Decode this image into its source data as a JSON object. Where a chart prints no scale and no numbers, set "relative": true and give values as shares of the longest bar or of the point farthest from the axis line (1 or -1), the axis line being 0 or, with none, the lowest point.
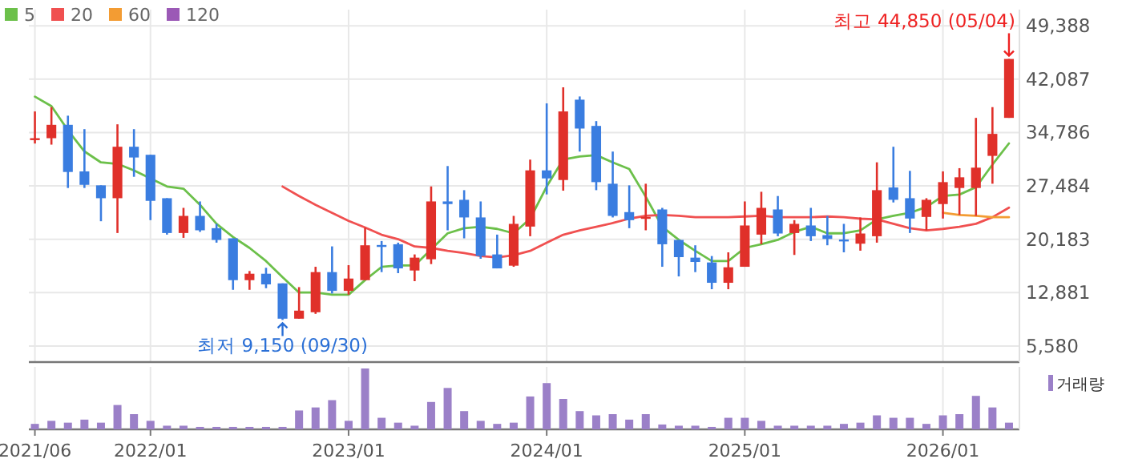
{
  "chart_data": [
    {
      "type": "candlestick",
      "x": [
        "2021-06",
        "2021-07",
        "2021-08",
        "2021-09",
        "2021-10",
        "2021-11",
        "2021-12",
        "2022-01",
        "2022-02",
        "2022-03",
        "2022-04",
        "2022-05",
        "2022-06",
        "2022-07",
        "2022-08",
        "2022-09",
        "2022-10",
        "2022-11",
        "2022-12",
        "2023-01",
        "2023-02",
        "2023-03",
        "2023-04",
        "2023-05",
        "2023-06",
        "2023-07",
        "2023-08",
        "2023-09",
        "2023-10",
        "2023-11",
        "2023-12",
        "2024-01",
        "2024-02",
        "2024-03",
        "2024-04",
        "2024-05",
        "2024-06",
        "2024-07",
        "2024-08",
        "2024-09",
        "2024-10",
        "2024-11",
        "2024-12",
        "2025-01",
        "2025-02",
        "2025-03",
        "2025-04",
        "2025-05",
        "2025-06",
        "2025-07",
        "2025-08",
        "2025-09",
        "2025-10",
        "2025-11",
        "2025-12",
        "2026-01",
        "2026-02",
        "2026-03",
        "2026-04",
        "2026-05"
      ],
      "ohlc": [
        [
          33900,
          37670,
          33280,
          34010
        ],
        [
          34010,
          38260,
          33130,
          35840
        ],
        [
          35840,
          37090,
          27200,
          29390
        ],
        [
          29470,
          35250,
          27200,
          27630
        ],
        [
          27560,
          27560,
          22650,
          25800
        ],
        [
          25800,
          35910,
          21040,
          32840
        ],
        [
          32840,
          35250,
          28730,
          31370
        ],
        [
          31740,
          31740,
          22800,
          25440
        ],
        [
          25800,
          25800,
          20820,
          21040
        ],
        [
          21040,
          24480,
          20380,
          23380
        ],
        [
          23380,
          25360,
          21190,
          21410
        ],
        [
          21700,
          22290,
          19720,
          20090
        ],
        [
          20310,
          20310,
          13270,
          14590
        ],
        [
          14590,
          15840,
          13270,
          15470
        ],
        [
          15470,
          16280,
          13490,
          14010
        ],
        [
          14150,
          14150,
          9150,
          9320
        ],
        [
          9320,
          13640,
          9300,
          10420
        ],
        [
          10200,
          16420,
          9980,
          15690
        ],
        [
          15690,
          19210,
          12760,
          13130
        ],
        [
          13130,
          16640,
          12610,
          14810
        ],
        [
          14590,
          21770,
          14590,
          19360
        ],
        [
          19400,
          19940,
          15690,
          19360
        ],
        [
          19500,
          19720,
          15550,
          16200
        ],
        [
          15910,
          18110,
          14450,
          17670
        ],
        [
          17450,
          27410,
          16790,
          25360
        ],
        [
          25360,
          30200,
          21410,
          25000
        ],
        [
          25580,
          26900,
          20310,
          23170
        ],
        [
          23170,
          25360,
          17520,
          17890
        ],
        [
          18110,
          20820,
          16200,
          16200
        ],
        [
          16570,
          23380,
          16420,
          22290
        ],
        [
          21920,
          31080,
          20600,
          29610
        ],
        [
          29610,
          38770,
          26320,
          28510
        ],
        [
          28290,
          40970,
          26830,
          37670
        ],
        [
          39280,
          39720,
          32180,
          35330
        ],
        [
          35690,
          36350,
          26900,
          28000
        ],
        [
          27780,
          32180,
          23170,
          23380
        ],
        [
          23900,
          27560,
          21700,
          22800
        ],
        [
          23100,
          27780,
          21410,
          23240
        ],
        [
          24260,
          24480,
          16420,
          19500
        ],
        [
          20090,
          20090,
          15100,
          17740
        ],
        [
          17670,
          19360,
          15690,
          17080
        ],
        [
          17010,
          17890,
          13350,
          14230
        ],
        [
          14230,
          18400,
          13350,
          16350
        ],
        [
          16420,
          25360,
          16420,
          22070
        ],
        [
          20820,
          26680,
          19500,
          24480
        ],
        [
          24260,
          26100,
          20600,
          20970
        ],
        [
          21040,
          22800,
          18040,
          22290
        ],
        [
          22070,
          24480,
          19940,
          20600
        ],
        [
          20750,
          23380,
          19360,
          20230
        ],
        [
          20150,
          22290,
          18400,
          20090
        ],
        [
          19580,
          23170,
          18620,
          20970
        ],
        [
          20600,
          30710,
          19720,
          26900
        ],
        [
          27270,
          32840,
          25220,
          25580
        ],
        [
          25800,
          29540,
          21040,
          23020
        ],
        [
          23240,
          25800,
          21410,
          25580
        ],
        [
          25000,
          29470,
          23020,
          28000
        ],
        [
          27200,
          29910,
          23530,
          28660
        ],
        [
          27200,
          36790,
          23380,
          29980
        ],
        [
          31590,
          38260,
          27780,
          34600
        ],
        [
          36790,
          44850,
          36790,
          44850
        ]
      ],
      "colors": [
        "#e0302a",
        "#e0302a",
        "#3a7de0",
        "#3a7de0",
        "#3a7de0",
        "#e0302a",
        "#3a7de0",
        "#3a7de0",
        "#3a7de0",
        "#e0302a",
        "#3a7de0",
        "#3a7de0",
        "#3a7de0",
        "#e0302a",
        "#3a7de0",
        "#3a7de0",
        "#e0302a",
        "#e0302a",
        "#3a7de0",
        "#e0302a",
        "#e0302a",
        "#3a7de0",
        "#3a7de0",
        "#e0302a",
        "#e0302a",
        "#3a7de0",
        "#3a7de0",
        "#3a7de0",
        "#3a7de0",
        "#e0302a",
        "#e0302a",
        "#3a7de0",
        "#e0302a",
        "#3a7de0",
        "#3a7de0",
        "#3a7de0",
        "#3a7de0",
        "#e0302a",
        "#3a7de0",
        "#3a7de0",
        "#3a7de0",
        "#3a7de0",
        "#e0302a",
        "#e0302a",
        "#e0302a",
        "#3a7de0",
        "#e0302a",
        "#3a7de0",
        "#3a7de0",
        "#3a7de0",
        "#e0302a",
        "#e0302a",
        "#3a7de0",
        "#3a7de0",
        "#e0302a",
        "#e0302a",
        "#e0302a",
        "#e0302a",
        "#e0302a",
        "#e0302a"
      ],
      "series": [
        {
          "name": "5",
          "type": "line",
          "color": "#6cc04a",
          "values": [
            39700,
            38400,
            35100,
            32200,
            30700,
            30500,
            29600,
            28500,
            27400,
            27100,
            24900,
            22300,
            20500,
            19000,
            17200,
            15000,
            12900,
            12900,
            12600,
            12600,
            14600,
            16400,
            16600,
            16600,
            18800,
            21000,
            21700,
            21900,
            21600,
            21000,
            23000,
            27400,
            31100,
            31500,
            31700,
            30700,
            29800,
            26000,
            21900,
            20100,
            18600,
            17200,
            17200,
            19000,
            19500,
            20100,
            21200,
            21900,
            21000,
            21000,
            21400,
            22900,
            23400,
            23800,
            24600,
            26100,
            26300,
            27300,
            30400,
            33300
          ]
        },
        {
          "name": "20",
          "type": "line",
          "color": "#f05050",
          "values": [
            null,
            null,
            null,
            null,
            null,
            null,
            null,
            null,
            null,
            null,
            null,
            null,
            null,
            null,
            null,
            27400,
            26100,
            24900,
            23800,
            22700,
            21800,
            20800,
            20200,
            19200,
            19000,
            18600,
            18300,
            17900,
            17700,
            18000,
            18600,
            19700,
            20800,
            21400,
            21900,
            22400,
            23000,
            23400,
            23500,
            23400,
            23200,
            23200,
            23200,
            23300,
            23400,
            23200,
            23200,
            23200,
            23300,
            23200,
            23000,
            22900,
            22300,
            21700,
            21400,
            21600,
            21900,
            22300,
            23200,
            24500
          ]
        },
        {
          "name": "60",
          "type": "line",
          "color": "#f39c33",
          "values": [
            null,
            null,
            null,
            null,
            null,
            null,
            null,
            null,
            null,
            null,
            null,
            null,
            null,
            null,
            null,
            null,
            null,
            null,
            null,
            null,
            null,
            null,
            null,
            null,
            null,
            null,
            null,
            null,
            null,
            null,
            null,
            null,
            null,
            null,
            null,
            null,
            null,
            null,
            null,
            null,
            null,
            null,
            null,
            null,
            null,
            null,
            null,
            null,
            null,
            null,
            null,
            null,
            null,
            null,
            null,
            23800,
            23500,
            23400,
            23200,
            23200
          ]
        },
        {
          "name": "120",
          "type": "line",
          "color": "#9b59b6",
          "values": [
            null,
            null,
            null,
            null,
            null,
            null,
            null,
            null,
            null,
            null,
            null,
            null,
            null,
            null,
            null,
            null,
            null,
            null,
            null,
            null,
            null,
            null,
            null,
            null,
            null,
            null,
            null,
            null,
            null,
            null,
            null,
            null,
            null,
            null,
            null,
            null,
            null,
            null,
            null,
            null,
            null,
            null,
            null,
            null,
            null,
            null,
            null,
            null,
            null,
            null,
            null,
            null,
            null,
            null,
            null,
            null,
            null,
            null,
            null,
            null
          ]
        }
      ],
      "xlim": [
        "2021-05-20",
        "2026-05-20"
      ],
      "xticks": [
        {
          "value": "2021-06",
          "label": null
        },
        {
          "value": "2022-01",
          "label": null
        },
        {
          "value": "2023-01",
          "label": null
        },
        {
          "value": "2024-01",
          "label": null
        },
        {
          "value": "2025-01",
          "label": null
        },
        {
          "value": "2026-01",
          "label": null
        }
      ],
      "ylim": [
        3384,
        51600
      ],
      "yticks": [
        {
          "value": 5580,
          "label": "5,580"
        },
        {
          "value": 12881,
          "label": "12,881"
        },
        {
          "value": 20183,
          "label": "20,183"
        },
        {
          "value": 27484,
          "label": "27,484"
        },
        {
          "value": 34786,
          "label": "34,786"
        },
        {
          "value": 42087,
          "label": "42,087"
        },
        {
          "value": 49388,
          "label": "49,388"
        }
      ],
      "grid": true,
      "legend": "top left",
      "tick_labels": "y",
      "annotations": [
        {
          "text": "최고 44,850 (05/04)",
          "x": "2026-05",
          "y": 44850
        },
        {
          "text": "최저 9,150 (09/30)",
          "x": "2022-09",
          "y": 9150
        }
      ]
    },
    {
      "type": "bar",
      "relative": true,
      "x": [
        "2021-06",
        "2021-07",
        "2021-08",
        "2021-09",
        "2021-10",
        "2021-11",
        "2021-12",
        "2022-01",
        "2022-02",
        "2022-03",
        "2022-04",
        "2022-05",
        "2022-06",
        "2022-07",
        "2022-08",
        "2022-09",
        "2022-10",
        "2022-11",
        "2022-12",
        "2023-01",
        "2023-02",
        "2023-03",
        "2023-04",
        "2023-05",
        "2023-06",
        "2023-07",
        "2023-08",
        "2023-09",
        "2023-10",
        "2023-11",
        "2023-12",
        "2024-01",
        "2024-02",
        "2024-03",
        "2024-04",
        "2024-05",
        "2024-06",
        "2024-07",
        "2024-08",
        "2024-09",
        "2024-10",
        "2024-11",
        "2024-12",
        "2025-01",
        "2025-02",
        "2025-03",
        "2025-04",
        "2025-05",
        "2025-06",
        "2025-07",
        "2025-08",
        "2025-09",
        "2025-10",
        "2025-11",
        "2025-12",
        "2026-01",
        "2026-02",
        "2026-03",
        "2026-04",
        "2026-05"
      ],
      "series": [
        {
          "name": "거래량",
          "color": "#9b80c8",
          "values": [
            0.09,
            0.14,
            0.11,
            0.16,
            0.11,
            0.4,
            0.25,
            0.14,
            0.06,
            0.06,
            0.04,
            0.04,
            0.04,
            0.04,
            0.04,
            0.04,
            0.31,
            0.36,
            0.48,
            0.14,
            1,
            0.19,
            0.11,
            0.06,
            0.45,
            0.68,
            0.3,
            0.14,
            0.09,
            0.11,
            0.54,
            0.76,
            0.5,
            0.3,
            0.23,
            0.25,
            0.16,
            0.25,
            0.08,
            0.06,
            0.06,
            0.04,
            0.19,
            0.19,
            0.14,
            0.06,
            0.06,
            0.06,
            0.06,
            0.09,
            0.11,
            0.23,
            0.19,
            0.19,
            0.09,
            0.23,
            0.25,
            0.55,
            0.36,
            0.11
          ]
        }
      ],
      "xlim": [
        "2021-05-20",
        "2026-05-20"
      ],
      "xticks": [
        {
          "value": "2021-06",
          "label": "2021/06"
        },
        {
          "value": "2022-01",
          "label": "2022/01"
        },
        {
          "value": "2023-01",
          "label": "2023/01"
        },
        {
          "value": "2024-01",
          "label": "2024/01"
        },
        {
          "value": "2025-01",
          "label": "2025/01"
        },
        {
          "value": "2026-01",
          "label": "2026/01"
        }
      ],
      "grid": "x",
      "legend": "top right",
      "tick_labels": "x"
    }
  ]
}
